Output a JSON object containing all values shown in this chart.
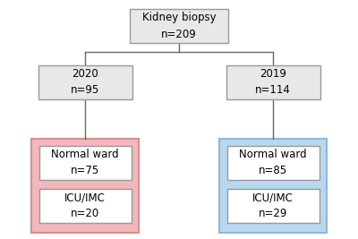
{
  "title": "Kidney biopsy\nn=209",
  "left_year": "2020\nn=95",
  "right_year": "2019\nn=114",
  "left_ward": "Normal ward\nn=75",
  "left_icu": "ICU/IMC\nn=20",
  "right_ward": "Normal ward\nn=85",
  "right_icu": "ICU/IMC\nn=29",
  "box_facecolor_gray": "#e8e8e8",
  "box_edgecolor_gray": "#999999",
  "box_facecolor_white": "#ffffff",
  "box_edgecolor_white": "#999999",
  "bg_left_color": "#f2b8bb",
  "bg_right_color": "#b8d8f0",
  "bg_left_edge": "#d49090",
  "bg_right_edge": "#90b8d8",
  "fig_bg": "#ffffff",
  "line_color": "#666666",
  "fontsize": 8.5,
  "fontsize_main": 8.5
}
